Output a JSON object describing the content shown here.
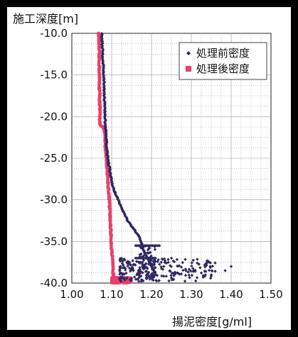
{
  "chart_data": {
    "type": "scatter",
    "title": "",
    "xlabel": "揚泥密度[g/ml]",
    "ylabel": "施工深度[m]",
    "xlim": [
      1.0,
      1.5
    ],
    "ylim": [
      -40.0,
      -10.0
    ],
    "x_ticks": [
      "1.00",
      "1.10",
      "1.20",
      "1.30",
      "1.40",
      "1.50"
    ],
    "y_ticks": [
      "-10.0",
      "-15.0",
      "-20.0",
      "-25.0",
      "-30.0",
      "-35.0",
      "-40.0"
    ],
    "grid": true,
    "legend_position": "top-right",
    "series": [
      {
        "name": "処理前密度",
        "color": "#2e2860",
        "marker": "diamond",
        "trace": [
          [
            1.075,
            -10.0
          ],
          [
            1.077,
            -12.0
          ],
          [
            1.079,
            -14.0
          ],
          [
            1.081,
            -16.0
          ],
          [
            1.082,
            -18.0
          ],
          [
            1.083,
            -19.5
          ],
          [
            1.084,
            -21.0
          ],
          [
            1.086,
            -22.5
          ],
          [
            1.088,
            -24.0
          ],
          [
            1.092,
            -25.5
          ],
          [
            1.097,
            -27.0
          ],
          [
            1.103,
            -28.5
          ],
          [
            1.112,
            -29.5
          ],
          [
            1.125,
            -31.0
          ],
          [
            1.14,
            -32.5
          ],
          [
            1.155,
            -33.5
          ],
          [
            1.17,
            -34.5
          ],
          [
            1.18,
            -36.0
          ],
          [
            1.19,
            -37.0
          ],
          [
            1.2,
            -38.0
          ],
          [
            1.21,
            -39.0
          ],
          [
            1.2,
            -39.6
          ]
        ],
        "clusters": [
          {
            "x_range": [
              1.12,
              1.36
            ],
            "y_range": [
              -39.8,
              -37.0
            ],
            "count": 230
          },
          {
            "x_range": [
              1.17,
              1.21
            ],
            "y_range": [
              -39.8,
              -35.5
            ],
            "count": 60
          }
        ],
        "segments": [
          {
            "x": [
              1.16,
              1.22
            ],
            "y": -35.5
          },
          {
            "x": [
              1.16,
              1.21
            ],
            "y": -37.0
          }
        ],
        "outliers": [
          [
            1.385,
            -38.5
          ],
          [
            1.4,
            -38.0
          ],
          [
            1.33,
            -39.3
          ],
          [
            1.35,
            -39.0
          ]
        ]
      },
      {
        "name": "処理後密度",
        "color": "#e8406a",
        "marker": "square",
        "trace": [
          [
            1.068,
            -10.0
          ],
          [
            1.068,
            -12.0
          ],
          [
            1.069,
            -14.0
          ],
          [
            1.069,
            -16.0
          ],
          [
            1.07,
            -18.0
          ],
          [
            1.07,
            -20.0
          ],
          [
            1.071,
            -20.8
          ],
          [
            1.073,
            -21.1
          ],
          [
            1.077,
            -21.2
          ],
          [
            1.08,
            -21.3
          ],
          [
            1.082,
            -22.0
          ],
          [
            1.084,
            -23.5
          ],
          [
            1.087,
            -25.0
          ],
          [
            1.089,
            -26.5
          ],
          [
            1.091,
            -28.0
          ],
          [
            1.094,
            -30.0
          ],
          [
            1.096,
            -32.0
          ],
          [
            1.098,
            -34.0
          ],
          [
            1.1,
            -36.0
          ],
          [
            1.102,
            -37.5
          ],
          [
            1.104,
            -38.8
          ],
          [
            1.106,
            -39.3
          ],
          [
            1.108,
            -39.6
          ]
        ],
        "clusters": [
          {
            "x_range": [
              1.1,
              1.15
            ],
            "y_range": [
              -40.0,
              -39.3
            ],
            "count": 180
          }
        ],
        "segments": [],
        "outliers": []
      }
    ]
  }
}
